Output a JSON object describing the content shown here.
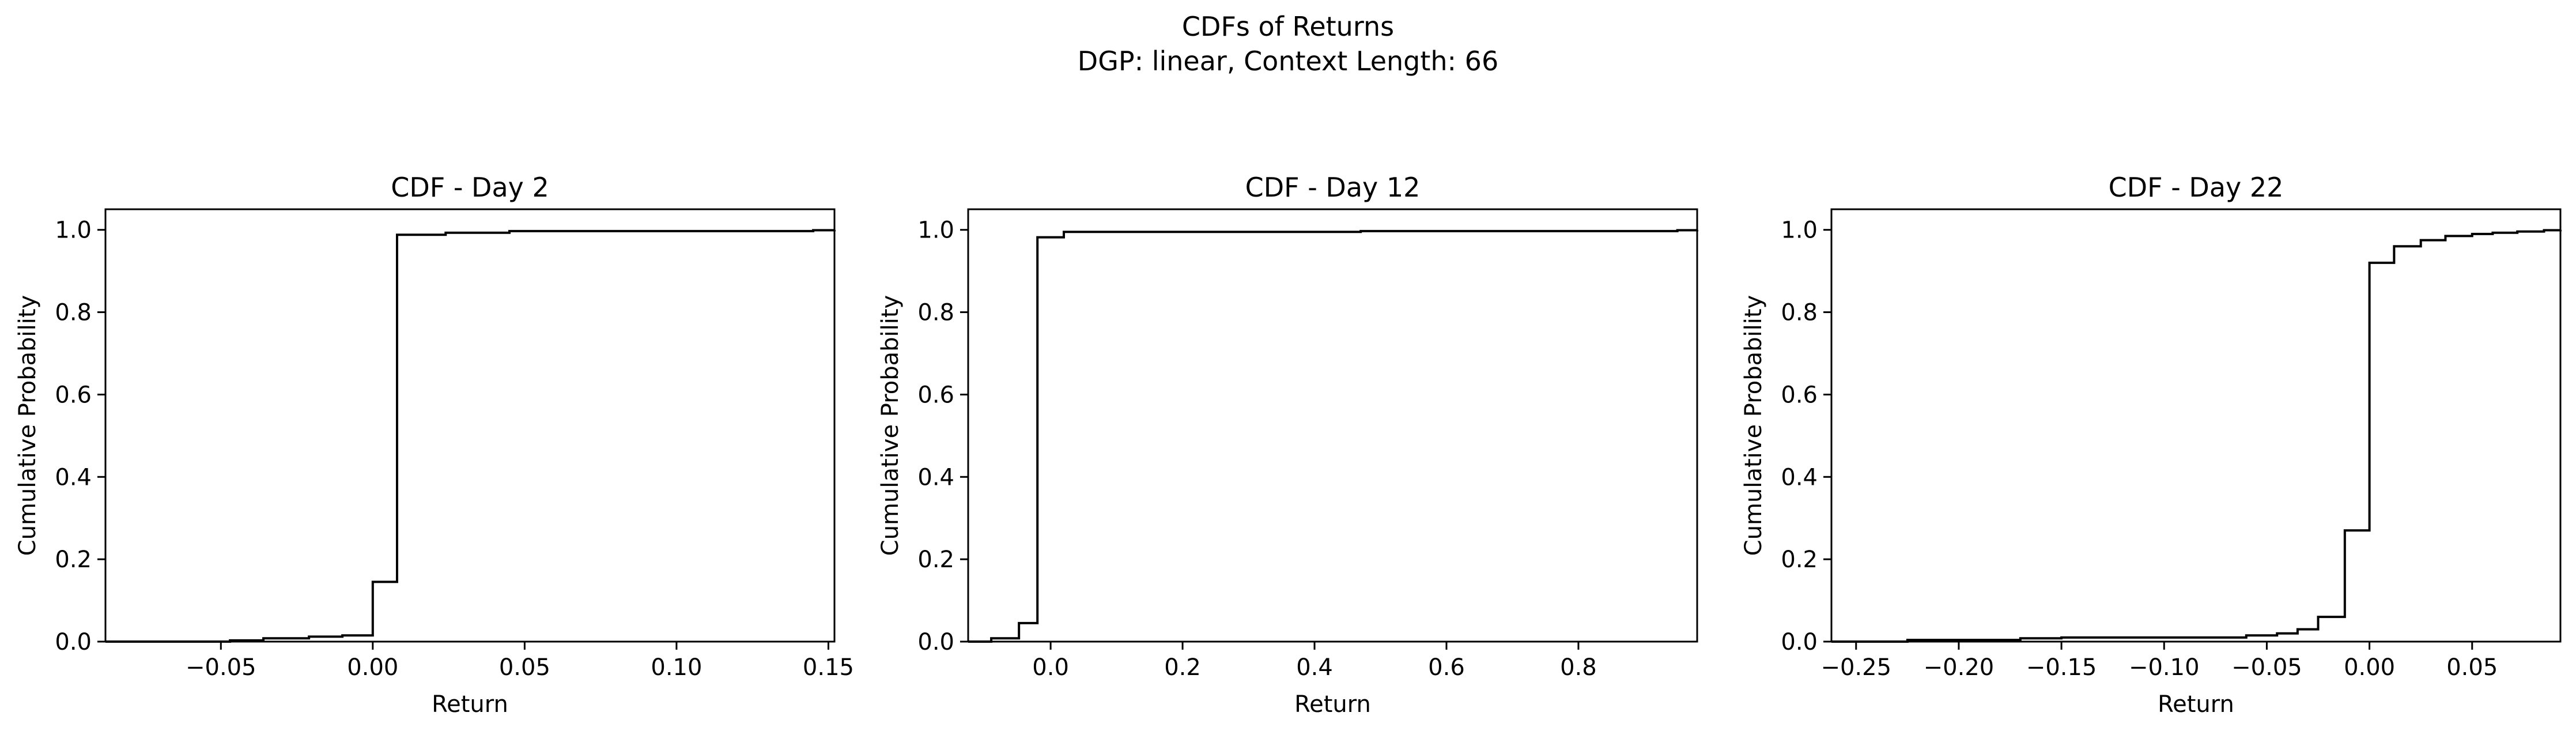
{
  "figure": {
    "title_line1": "CDFs of Returns",
    "title_line2": "DGP: linear, Context Length: 66"
  },
  "chart_data": [
    {
      "type": "line",
      "step": true,
      "title": "CDF - Day 2",
      "xlabel": "Return",
      "ylabel": "Cumulative Probability",
      "xlim": [
        -0.088,
        0.152
      ],
      "ylim": [
        0,
        1.05
      ],
      "xticks": [
        -0.05,
        0.0,
        0.05,
        0.1,
        0.15
      ],
      "xtick_labels": [
        "−0.05",
        "0.00",
        "0.05",
        "0.10",
        "0.15"
      ],
      "yticks": [
        0.0,
        0.2,
        0.4,
        0.6,
        0.8,
        1.0
      ],
      "ytick_labels": [
        "0.0",
        "0.2",
        "0.4",
        "0.6",
        "0.8",
        "1.0"
      ],
      "grid": false,
      "color": "#000000",
      "x": [
        -0.088,
        -0.047,
        -0.036,
        -0.021,
        -0.01,
        0.0,
        0.008,
        0.024,
        0.045,
        0.145,
        0.152
      ],
      "y": [
        0.0,
        0.003,
        0.008,
        0.012,
        0.015,
        0.145,
        0.988,
        0.993,
        0.997,
        0.999,
        1.0
      ]
    },
    {
      "type": "line",
      "step": true,
      "title": "CDF - Day 12",
      "xlabel": "Return",
      "ylabel": "Cumulative Probability",
      "xlim": [
        -0.125,
        0.98
      ],
      "ylim": [
        0,
        1.05
      ],
      "xticks": [
        0.0,
        0.2,
        0.4,
        0.6,
        0.8
      ],
      "xtick_labels": [
        "0.0",
        "0.2",
        "0.4",
        "0.6",
        "0.8"
      ],
      "yticks": [
        0.0,
        0.2,
        0.4,
        0.6,
        0.8,
        1.0
      ],
      "ytick_labels": [
        "0.0",
        "0.2",
        "0.4",
        "0.6",
        "0.8",
        "1.0"
      ],
      "grid": false,
      "color": "#000000",
      "x": [
        -0.125,
        -0.09,
        -0.048,
        -0.02,
        0.02,
        0.47,
        0.95,
        0.98
      ],
      "y": [
        0.0,
        0.008,
        0.045,
        0.982,
        0.995,
        0.997,
        0.999,
        1.0
      ]
    },
    {
      "type": "line",
      "step": true,
      "title": "CDF - Day 22",
      "xlabel": "Return",
      "ylabel": "Cumulative Probability",
      "xlim": [
        -0.262,
        0.093
      ],
      "ylim": [
        0,
        1.05
      ],
      "xticks": [
        -0.25,
        -0.2,
        -0.15,
        -0.1,
        -0.05,
        0.0,
        0.05
      ],
      "xtick_labels": [
        "−0.25",
        "−0.20",
        "−0.15",
        "−0.10",
        "−0.05",
        "0.00",
        "0.05"
      ],
      "yticks": [
        0.0,
        0.2,
        0.4,
        0.6,
        0.8,
        1.0
      ],
      "ytick_labels": [
        "0.0",
        "0.2",
        "0.4",
        "0.6",
        "0.8",
        "1.0"
      ],
      "grid": false,
      "color": "#000000",
      "x": [
        -0.262,
        -0.225,
        -0.17,
        -0.15,
        -0.06,
        -0.045,
        -0.035,
        -0.025,
        -0.012,
        0.0,
        0.012,
        0.025,
        0.037,
        0.05,
        0.06,
        0.072,
        0.085,
        0.093
      ],
      "y": [
        0.0,
        0.004,
        0.008,
        0.01,
        0.015,
        0.02,
        0.03,
        0.06,
        0.27,
        0.92,
        0.96,
        0.975,
        0.985,
        0.99,
        0.993,
        0.996,
        0.999,
        1.0
      ]
    }
  ]
}
